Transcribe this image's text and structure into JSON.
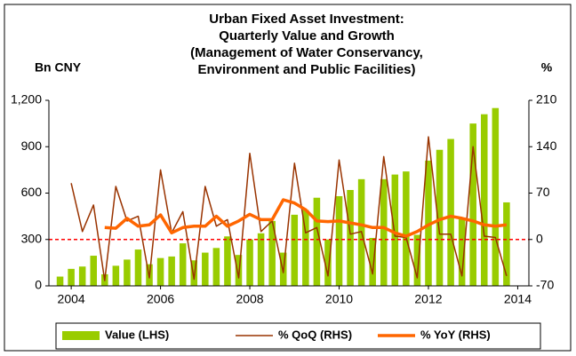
{
  "chart_data": {
    "type": "bar_line",
    "title": [
      "Urban Fixed Asset Investment:",
      "Quarterly Value and Growth",
      "(Management of Water Conservancy,",
      "Environment and Public Facilities)"
    ],
    "y_label": "Bn CNY",
    "y2_label": "%",
    "x": [
      2003.75,
      2004,
      2004.25,
      2004.5,
      2004.75,
      2005,
      2005.25,
      2005.5,
      2005.75,
      2006,
      2006.25,
      2006.5,
      2006.75,
      2007,
      2007.25,
      2007.5,
      2007.75,
      2008,
      2008.25,
      2008.5,
      2008.75,
      2009,
      2009.25,
      2009.5,
      2009.75,
      2010,
      2010.25,
      2010.5,
      2010.75,
      2011,
      2011.25,
      2011.5,
      2011.75,
      2012,
      2012.25,
      2012.5,
      2012.75,
      2013,
      2013.25,
      2013.5,
      2013.75
    ],
    "series": [
      {
        "name": "Value (LHS)",
        "color": "#99cc00",
        "kind": "bar",
        "values": [
          60,
          110,
          125,
          195,
          75,
          130,
          170,
          235,
          140,
          180,
          190,
          275,
          165,
          215,
          245,
          320,
          200,
          300,
          340,
          420,
          215,
          460,
          490,
          570,
          300,
          580,
          620,
          690,
          310,
          690,
          720,
          740,
          330,
          810,
          880,
          950,
          440,
          1050,
          1110,
          1150,
          540
        ]
      },
      {
        "name": "% QoQ (RHS)",
        "color": "#993300",
        "kind": "line",
        "width": 1.5,
        "axis": "y2",
        "values": [
          null,
          85,
          12,
          52,
          -62,
          80,
          28,
          35,
          -58,
          105,
          10,
          42,
          -60,
          80,
          20,
          30,
          -58,
          130,
          12,
          28,
          -50,
          115,
          10,
          18,
          -55,
          120,
          8,
          12,
          -52,
          125,
          5,
          3,
          -58,
          155,
          8,
          8,
          -55,
          140,
          5,
          3,
          -55
        ]
      },
      {
        "name": "% YoY (RHS)",
        "color": "#ff6600",
        "kind": "line",
        "width": 3.5,
        "axis": "y2",
        "values": [
          null,
          null,
          null,
          null,
          18,
          17,
          32,
          20,
          22,
          37,
          10,
          18,
          20,
          20,
          35,
          20,
          28,
          38,
          30,
          30,
          60,
          55,
          45,
          28,
          27,
          28,
          25,
          22,
          18,
          18,
          10,
          5,
          12,
          22,
          30,
          35,
          32,
          28,
          22,
          20,
          22
        ]
      }
    ],
    "xlim": [
      2003.5,
      2014.25
    ],
    "xticks": [
      2004,
      2006,
      2008,
      2010,
      2012,
      2014
    ],
    "ylim": [
      0,
      1200
    ],
    "yticks": [
      0,
      300,
      600,
      900,
      {
        "value": 1200,
        "label": "1,200"
      }
    ],
    "y2lim": [
      -70,
      210
    ],
    "y2ticks": [
      -70,
      0,
      70,
      140,
      210
    ],
    "zero_line_color": "#ff0000"
  }
}
